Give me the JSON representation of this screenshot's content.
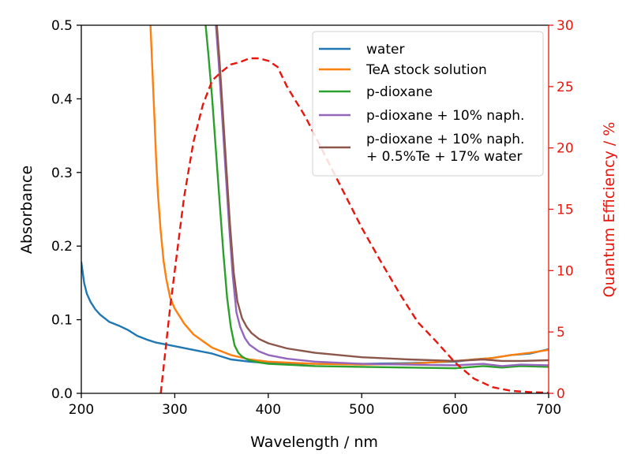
{
  "chart_data": {
    "type": "line",
    "xlabel": "Wavelength / nm",
    "ylabel": "Absorbance",
    "y2label": "Quantum Efficiency / %",
    "xlim": [
      200,
      700
    ],
    "ylim": [
      0,
      0.5
    ],
    "y2lim": [
      0,
      30
    ],
    "xticks": [
      200,
      300,
      400,
      500,
      600,
      700
    ],
    "yticks": [
      0.0,
      0.1,
      0.2,
      0.3,
      0.4,
      0.5
    ],
    "yticklabels": [
      "0.0",
      "0.1",
      "0.2",
      "0.3",
      "0.4",
      "0.5"
    ],
    "y2ticks": [
      0,
      5,
      10,
      15,
      20,
      25,
      30
    ],
    "legend_position": "top-right",
    "colors": {
      "right_axis": "#e8160c"
    },
    "series": [
      {
        "name": "water",
        "color": "#1f77b4",
        "axis": "left",
        "x": [
          200,
          203,
          206,
          210,
          215,
          220,
          225,
          230,
          240,
          250,
          260,
          270,
          280,
          300,
          320,
          340,
          360,
          380,
          400,
          450,
          500,
          550,
          600,
          620,
          640,
          660,
          680,
          700
        ],
        "y": [
          0.178,
          0.15,
          0.135,
          0.124,
          0.114,
          0.107,
          0.102,
          0.097,
          0.092,
          0.086,
          0.078,
          0.073,
          0.069,
          0.064,
          0.059,
          0.054,
          0.046,
          0.043,
          0.041,
          0.04,
          0.04,
          0.041,
          0.043,
          0.046,
          0.048,
          0.052,
          0.054,
          0.06
        ]
      },
      {
        "name": "TeA stock solution",
        "color": "#ff7f0e",
        "axis": "left",
        "x": [
          274,
          276,
          278,
          280,
          282,
          285,
          288,
          291,
          295,
          300,
          310,
          320,
          340,
          360,
          380,
          400,
          450,
          500,
          550,
          600,
          640,
          660,
          680,
          700
        ],
        "y": [
          0.5,
          0.44,
          0.38,
          0.32,
          0.27,
          0.22,
          0.18,
          0.155,
          0.13,
          0.115,
          0.095,
          0.08,
          0.062,
          0.052,
          0.046,
          0.043,
          0.04,
          0.039,
          0.04,
          0.044,
          0.048,
          0.052,
          0.055,
          0.059
        ]
      },
      {
        "name": "p-dioxane",
        "color": "#2ca02c",
        "axis": "left",
        "x": [
          333,
          336,
          340,
          344,
          348,
          352,
          356,
          360,
          364,
          368,
          372,
          376,
          380,
          390,
          400,
          450,
          500,
          550,
          600,
          630,
          650,
          670,
          700
        ],
        "y": [
          0.5,
          0.46,
          0.4,
          0.33,
          0.26,
          0.19,
          0.13,
          0.09,
          0.065,
          0.055,
          0.05,
          0.047,
          0.045,
          0.042,
          0.04,
          0.037,
          0.036,
          0.035,
          0.034,
          0.037,
          0.035,
          0.037,
          0.036
        ]
      },
      {
        "name": "p-dioxane + 10% naph.",
        "color": "#9467bd",
        "axis": "left",
        "x": [
          344,
          347,
          350,
          354,
          358,
          362,
          366,
          370,
          375,
          380,
          390,
          400,
          420,
          450,
          500,
          550,
          600,
          630,
          650,
          670,
          700
        ],
        "y": [
          0.5,
          0.45,
          0.39,
          0.31,
          0.23,
          0.16,
          0.11,
          0.09,
          0.075,
          0.066,
          0.057,
          0.052,
          0.047,
          0.043,
          0.04,
          0.039,
          0.038,
          0.04,
          0.037,
          0.039,
          0.038
        ]
      },
      {
        "name": "p-dioxane + 10% naph. + 0.5%Te + 17% water",
        "label_lines": [
          "p-dioxane + 10% naph.",
          "+ 0.5%Te + 17% water"
        ],
        "color": "#8c564b",
        "axis": "left",
        "x": [
          345,
          348,
          351,
          355,
          359,
          363,
          367,
          372,
          377,
          382,
          390,
          400,
          420,
          450,
          500,
          550,
          600,
          630,
          650,
          670,
          700
        ],
        "y": [
          0.5,
          0.45,
          0.39,
          0.31,
          0.23,
          0.165,
          0.125,
          0.102,
          0.09,
          0.082,
          0.074,
          0.068,
          0.061,
          0.055,
          0.049,
          0.046,
          0.044,
          0.046,
          0.044,
          0.044,
          0.045
        ]
      },
      {
        "name": "Quantum Efficiency",
        "color": "#e8160c",
        "axis": "right",
        "dashed": true,
        "x": [
          285,
          290,
          295,
          300,
          310,
          320,
          330,
          340,
          350,
          360,
          370,
          380,
          390,
          400,
          410,
          420,
          440,
          460,
          480,
          500,
          520,
          540,
          560,
          580,
          600,
          620,
          640,
          660,
          680,
          700
        ],
        "y": [
          0,
          3.5,
          7,
          10,
          16,
          20.5,
          23.5,
          25.5,
          26.2,
          26.8,
          27.0,
          27.3,
          27.3,
          27.1,
          26.6,
          25.0,
          22.5,
          19.5,
          16.5,
          13.5,
          10.8,
          8.2,
          5.8,
          4.2,
          2.5,
          1.2,
          0.5,
          0.2,
          0.1,
          0.05
        ]
      }
    ]
  }
}
